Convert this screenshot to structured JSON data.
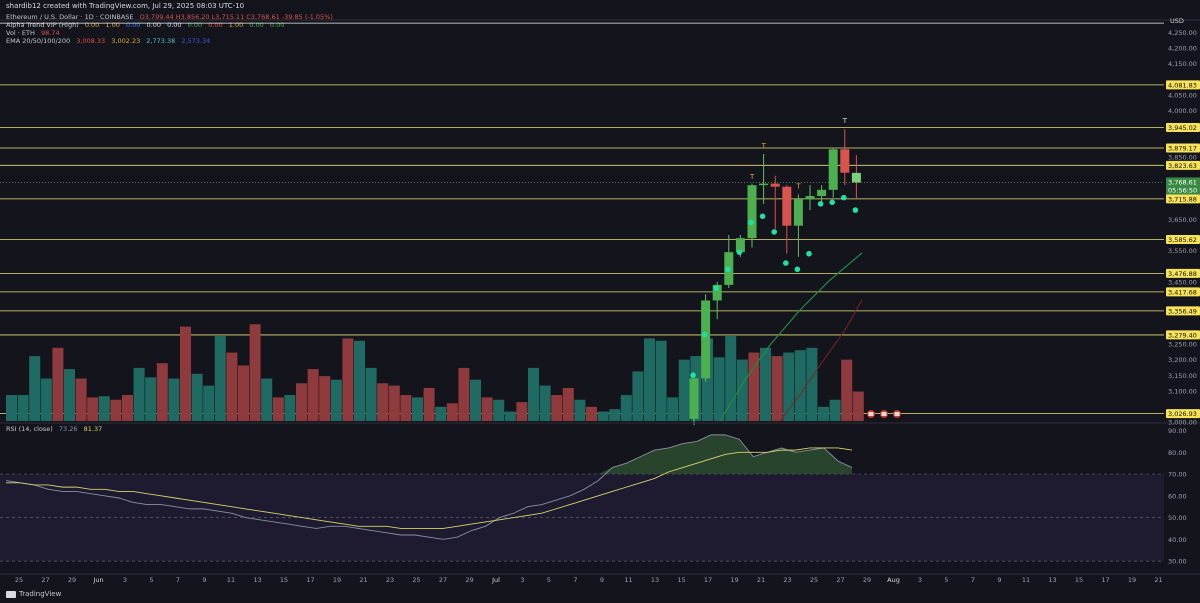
{
  "header": {
    "created_by": "shardib12 created with TradingView.com, Jul 29, 2025 08:03 UTC-10"
  },
  "legend": {
    "main": {
      "name": "Ethereum / U.S. Dollar · 1D · COINBASE",
      "ohlc": "O3,799.44 H3,856.20 L3,715.11 C3,768.61 -39.85 (-1.05%)"
    },
    "alpha_trend": {
      "name": "Alpha Trend VIP (High)",
      "values": [
        "0.00",
        "1.00",
        "0.00",
        "0.00",
        "0.00",
        "0.00",
        "0.00",
        "1.00",
        "0.00",
        "0.00"
      ]
    },
    "vol": {
      "name": "Vol · ETH",
      "value": "98.74"
    },
    "ema": {
      "name": "EMA 20/50/100/200",
      "values": [
        "3,008.33",
        "3,002.23",
        "2,773.38",
        "2,573.34"
      ]
    }
  },
  "rsi_legend": {
    "name": "RSI (14, close)",
    "values": [
      "73.26",
      "81.37"
    ]
  },
  "footer": {
    "brand": "TradingView"
  },
  "colors": {
    "background": "#14151c",
    "bull": "#4caf50",
    "bear": "#d9534f",
    "level_line": "#e8e27a",
    "level_label_bg": "#f7e25a",
    "rsi_line": "#8a8fa3",
    "rsi_ma": "#d8d36a",
    "alpha_dot": "#21e0a2",
    "ema_green": "#1e8e3e",
    "ema_red": "#7a2525"
  },
  "chart_data": [
    {
      "type": "candlestick",
      "price_axis": {
        "unit": "USD",
        "ticks": [
          4250,
          4200,
          4150,
          4100,
          4050,
          4000,
          3950,
          3900,
          3850,
          3800,
          3750,
          3700,
          3650,
          3600,
          3550,
          3500,
          3450,
          3400,
          3350,
          3300,
          3250,
          3200,
          3150,
          3100,
          3050,
          3000
        ]
      },
      "date_axis_ticks": [
        "25",
        "27",
        "29",
        "Jun",
        "3",
        "5",
        "7",
        "9",
        "11",
        "13",
        "15",
        "17",
        "19",
        "21",
        "23",
        "25",
        "27",
        "29",
        "Jul",
        "3",
        "5",
        "7",
        "9",
        "11",
        "13",
        "15",
        "17",
        "19",
        "21",
        "23",
        "25",
        "27",
        "29",
        "Aug",
        "3",
        "5",
        "7",
        "9",
        "11",
        "13",
        "15",
        "17",
        "19",
        "21"
      ],
      "levels": [
        {
          "label": "4,081.83",
          "value": 4081.83
        },
        {
          "label": "3,945.02",
          "value": 3945.02
        },
        {
          "label": "3,879.17",
          "value": 3879.17
        },
        {
          "label": "3,823.63",
          "value": 3823.63
        },
        {
          "label": "3,715.88",
          "value": 3715.88
        },
        {
          "label": "3,585.62",
          "value": 3585.62
        },
        {
          "label": "3,476.88",
          "value": 3476.88
        },
        {
          "label": "3,417.68",
          "value": 3417.68
        },
        {
          "label": "3,356.49",
          "value": 3356.49
        },
        {
          "label": "3,279.40",
          "value": 3279.4
        },
        {
          "label": "3,026.93",
          "value": 3026.93
        }
      ],
      "current_price": {
        "label": "3,768.61",
        "countdown": "05:56:50",
        "value": 3768.61
      },
      "candles": [
        {
          "date": "Jul 15",
          "o": 3010,
          "h": 3160,
          "l": 2990,
          "c": 3140
        },
        {
          "date": "Jul 16",
          "o": 3140,
          "h": 3410,
          "l": 3130,
          "c": 3390
        },
        {
          "date": "Jul 17",
          "o": 3390,
          "h": 3450,
          "l": 3330,
          "c": 3440
        },
        {
          "date": "Jul 18",
          "o": 3440,
          "h": 3600,
          "l": 3430,
          "c": 3545
        },
        {
          "date": "Jul 19",
          "o": 3545,
          "h": 3600,
          "l": 3530,
          "c": 3590
        },
        {
          "date": "Jul 20",
          "o": 3590,
          "h": 3765,
          "l": 3560,
          "c": 3760
        },
        {
          "date": "Jul 21",
          "o": 3760,
          "h": 3860,
          "l": 3700,
          "c": 3765
        },
        {
          "date": "Jul 22",
          "o": 3765,
          "h": 3790,
          "l": 3620,
          "c": 3755
        },
        {
          "date": "Jul 23",
          "o": 3755,
          "h": 3760,
          "l": 3540,
          "c": 3630
        },
        {
          "date": "Jul 24",
          "o": 3630,
          "h": 3730,
          "l": 3530,
          "c": 3715
        },
        {
          "date": "Jul 25",
          "o": 3715,
          "h": 3760,
          "l": 3680,
          "c": 3725
        },
        {
          "date": "Jul 26",
          "o": 3725,
          "h": 3760,
          "l": 3700,
          "c": 3745
        },
        {
          "date": "Jul 27",
          "o": 3745,
          "h": 3880,
          "l": 3720,
          "c": 3875
        },
        {
          "date": "Jul 28",
          "o": 3875,
          "h": 3940,
          "l": 3760,
          "c": 3800
        },
        {
          "date": "Jul 29",
          "o": 3799.44,
          "h": 3856.2,
          "l": 3715.11,
          "c": 3768.61
        }
      ],
      "alpha_trend_dots": [
        3150,
        3280,
        3430,
        3490,
        3545,
        3640,
        3660,
        3610,
        3510,
        3490,
        3540,
        3700,
        3705,
        3720,
        3680
      ],
      "volume": {
        "bars": [
          {
            "u": 1,
            "v": 0.22
          },
          {
            "u": 1,
            "v": 0.22
          },
          {
            "u": 1,
            "v": 0.55
          },
          {
            "u": 1,
            "v": 0.36
          },
          {
            "u": 0,
            "v": 0.62
          },
          {
            "u": 1,
            "v": 0.44
          },
          {
            "u": 0,
            "v": 0.36
          },
          {
            "u": 0,
            "v": 0.2
          },
          {
            "u": 1,
            "v": 0.21
          },
          {
            "u": 0,
            "v": 0.18
          },
          {
            "u": 0,
            "v": 0.22
          },
          {
            "u": 1,
            "v": 0.45
          },
          {
            "u": 1,
            "v": 0.37
          },
          {
            "u": 0,
            "v": 0.49
          },
          {
            "u": 1,
            "v": 0.36
          },
          {
            "u": 0,
            "v": 0.8
          },
          {
            "u": 1,
            "v": 0.4
          },
          {
            "u": 1,
            "v": 0.3
          },
          {
            "u": 1,
            "v": 0.72
          },
          {
            "u": 0,
            "v": 0.58
          },
          {
            "u": 0,
            "v": 0.47
          },
          {
            "u": 0,
            "v": 0.82
          },
          {
            "u": 1,
            "v": 0.36
          },
          {
            "u": 0,
            "v": 0.2
          },
          {
            "u": 1,
            "v": 0.22
          },
          {
            "u": 0,
            "v": 0.32
          },
          {
            "u": 0,
            "v": 0.44
          },
          {
            "u": 0,
            "v": 0.38
          },
          {
            "u": 1,
            "v": 0.35
          },
          {
            "u": 0,
            "v": 0.7
          },
          {
            "u": 1,
            "v": 0.68
          },
          {
            "u": 1,
            "v": 0.45
          },
          {
            "u": 0,
            "v": 0.32
          },
          {
            "u": 0,
            "v": 0.3
          },
          {
            "u": 0,
            "v": 0.22
          },
          {
            "u": 1,
            "v": 0.2
          },
          {
            "u": 0,
            "v": 0.28
          },
          {
            "u": 1,
            "v": 0.12
          },
          {
            "u": 0,
            "v": 0.15
          },
          {
            "u": 0,
            "v": 0.45
          },
          {
            "u": 1,
            "v": 0.35
          },
          {
            "u": 0,
            "v": 0.2
          },
          {
            "u": 1,
            "v": 0.18
          },
          {
            "u": 1,
            "v": 0.08
          },
          {
            "u": 0,
            "v": 0.16
          },
          {
            "u": 1,
            "v": 0.45
          },
          {
            "u": 1,
            "v": 0.3
          },
          {
            "u": 0,
            "v": 0.22
          },
          {
            "u": 0,
            "v": 0.28
          },
          {
            "u": 1,
            "v": 0.18
          },
          {
            "u": 0,
            "v": 0.12
          },
          {
            "u": 1,
            "v": 0.08
          },
          {
            "u": 1,
            "v": 0.1
          },
          {
            "u": 1,
            "v": 0.22
          },
          {
            "u": 1,
            "v": 0.42
          },
          {
            "u": 1,
            "v": 0.7
          },
          {
            "u": 1,
            "v": 0.68
          },
          {
            "u": 1,
            "v": 0.2
          },
          {
            "u": 1,
            "v": 0.52
          },
          {
            "u": 1,
            "v": 0.55
          },
          {
            "u": 1,
            "v": 0.7
          },
          {
            "u": 1,
            "v": 0.54
          },
          {
            "u": 1,
            "v": 0.72
          },
          {
            "u": 1,
            "v": 0.52
          },
          {
            "u": 0,
            "v": 0.58
          },
          {
            "u": 1,
            "v": 0.62
          },
          {
            "u": 0,
            "v": 0.55
          },
          {
            "u": 1,
            "v": 0.58
          },
          {
            "u": 1,
            "v": 0.6
          },
          {
            "u": 1,
            "v": 0.62
          },
          {
            "u": 1,
            "v": 0.12
          },
          {
            "u": 1,
            "v": 0.18
          },
          {
            "u": 0,
            "v": 0.52
          },
          {
            "u": 0,
            "v": 0.25
          }
        ]
      },
      "markers": [
        {
          "label": "T",
          "candle": 5,
          "value": 3780
        },
        {
          "label": "T",
          "candle": 6,
          "value": 3880
        },
        {
          "label": "T",
          "candle": 9,
          "value": 3750
        },
        {
          "label": "T",
          "candle": 13,
          "value": 3960
        }
      ]
    },
    {
      "type": "line",
      "title": "RSI (14, close)",
      "y_ticks": [
        90,
        80,
        70,
        60,
        50,
        40,
        30
      ],
      "ylim": [
        25,
        93
      ],
      "bands": [
        70,
        30
      ],
      "rsi": [
        67,
        66,
        65,
        63,
        62,
        62,
        61,
        60,
        59,
        57,
        56,
        56,
        55,
        54,
        54,
        53,
        52,
        50,
        49,
        48,
        47,
        46,
        45,
        46,
        46,
        45,
        44,
        43,
        42,
        42,
        41,
        40,
        41,
        44,
        46,
        50,
        52,
        55,
        56,
        58,
        60,
        63,
        67,
        73,
        75,
        78,
        81,
        82,
        84,
        85,
        88,
        88,
        86,
        78,
        80,
        82,
        80,
        81,
        82,
        76,
        73
      ],
      "rsi_ma": [
        66,
        66,
        65,
        65,
        64,
        64,
        63,
        63,
        62,
        62,
        61,
        60,
        59,
        58,
        57,
        56,
        55,
        54,
        53,
        52,
        51,
        50,
        49,
        48,
        47,
        46,
        46,
        46,
        45,
        45,
        45,
        45,
        46,
        47,
        48,
        49,
        50,
        51,
        52,
        54,
        56,
        58,
        60,
        62,
        64,
        66,
        68,
        71,
        73,
        75,
        77,
        79,
        80,
        80,
        80,
        81,
        81,
        82,
        82,
        82,
        81
      ]
    }
  ]
}
